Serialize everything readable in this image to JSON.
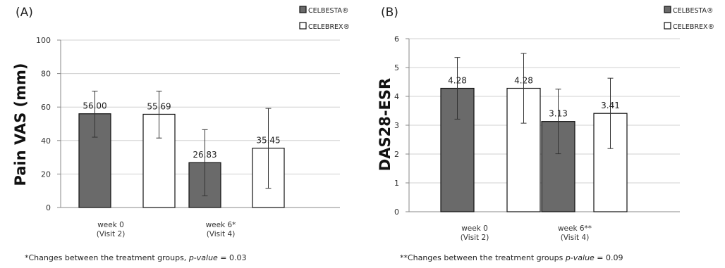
{
  "legend": {
    "series": [
      {
        "name": "CELBESTA®",
        "color": "#6a6a6a"
      },
      {
        "name": "CELEBREX®",
        "color": "#ffffff"
      }
    ]
  },
  "chart_data": [
    {
      "panel_label": "(A)",
      "type": "bar",
      "ylabel": "Pain VAS (mm)",
      "ylim": [
        0,
        100
      ],
      "yticks": [
        0,
        20,
        40,
        60,
        80,
        100
      ],
      "categories": [
        {
          "line1": "week 0",
          "line2": "(Visit 2)"
        },
        {
          "line1": "week 6*",
          "line2": "(Visit 4)"
        }
      ],
      "series": [
        {
          "name": "CELBESTA®",
          "values": [
            56.0,
            26.83
          ],
          "labels": [
            "56.00",
            "26.83"
          ],
          "err_low": [
            42,
            7
          ],
          "err_high": [
            69.5,
            46.5
          ]
        },
        {
          "name": "CELEBREX®",
          "values": [
            55.69,
            35.45
          ],
          "labels": [
            "55.69",
            "35.45"
          ],
          "err_low": [
            41.5,
            11.5
          ],
          "err_high": [
            69.5,
            59.2
          ]
        }
      ],
      "footnote": {
        "prefix": "*Changes between the treatment groups, ",
        "italic": "p-value",
        "suffix": " = 0.03"
      }
    },
    {
      "panel_label": "(B)",
      "type": "bar",
      "ylabel": "DAS28-ESR",
      "ylim": [
        0,
        6
      ],
      "yticks": [
        0,
        1,
        2,
        3,
        4,
        5,
        6
      ],
      "categories": [
        {
          "line1": "week 0",
          "line2": "(Visit 2)"
        },
        {
          "line1": "week 6**",
          "line2": "(Visit 4)"
        }
      ],
      "series": [
        {
          "name": "CELBESTA®",
          "values": [
            4.28,
            3.13
          ],
          "labels": [
            "4.28",
            "3.13"
          ],
          "err_low": [
            3.21,
            2.01
          ],
          "err_high": [
            5.35,
            4.25
          ]
        },
        {
          "name": "CELEBREX®",
          "values": [
            4.28,
            3.41
          ],
          "labels": [
            "4.28",
            "3.41"
          ],
          "err_low": [
            3.07,
            2.19
          ],
          "err_high": [
            5.49,
            4.63
          ]
        }
      ],
      "footnote": {
        "prefix": "**Changes between the treatment groups ",
        "italic": "p-value",
        "suffix": " = 0.09"
      }
    }
  ]
}
